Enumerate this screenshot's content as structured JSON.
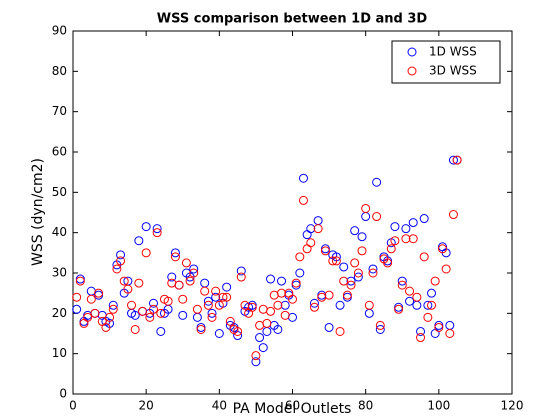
{
  "chart_data": {
    "type": "scatter",
    "title": "WSS comparison between 1D and 3D",
    "xlabel": "PA Model Outlets",
    "ylabel": "WSS (dyn/cm2)",
    "xlim": [
      0,
      120
    ],
    "xticks": [
      0,
      20,
      40,
      60,
      80,
      100,
      120
    ],
    "ylim": [
      0,
      90
    ],
    "yticks": [
      0,
      10,
      20,
      30,
      40,
      50,
      60,
      70,
      80,
      90
    ],
    "legend": "upper right",
    "x": [
      1,
      2,
      3,
      4,
      5,
      6,
      7,
      8,
      9,
      10,
      11,
      12,
      13,
      14,
      15,
      16,
      17,
      18,
      19,
      20,
      21,
      22,
      23,
      24,
      25,
      26,
      27,
      28,
      29,
      30,
      31,
      32,
      33,
      34,
      35,
      36,
      37,
      38,
      39,
      40,
      41,
      42,
      43,
      44,
      45,
      46,
      47,
      48,
      49,
      50,
      51,
      52,
      53,
      54,
      55,
      56,
      57,
      58,
      59,
      60,
      61,
      62,
      63,
      64,
      65,
      66,
      67,
      68,
      69,
      70,
      71,
      72,
      73,
      74,
      75,
      76,
      77,
      78,
      79,
      80,
      81,
      82,
      83,
      84,
      85,
      86,
      87,
      88,
      89,
      90,
      91,
      92,
      93,
      94,
      95,
      96,
      97,
      98,
      99,
      100,
      101,
      102,
      103,
      104,
      105
    ],
    "series": [
      {
        "name": "1D WSS",
        "color": "#0000ff",
        "values": [
          21,
          28.5,
          18,
          19.5,
          25.5,
          20,
          24.5,
          19.5,
          18,
          17.5,
          22,
          32,
          34.5,
          25,
          28,
          20,
          19.5,
          38,
          20.5,
          41.5,
          20,
          22.5,
          41,
          15.5,
          20,
          21,
          29,
          35,
          27,
          19.5,
          30,
          29,
          31,
          19,
          16.5,
          27.5,
          23,
          20,
          24,
          15,
          22.5,
          26.5,
          17,
          16.5,
          14.5,
          30.5,
          20.5,
          21.5,
          22,
          8,
          14,
          11.5,
          15.5,
          28.5,
          17,
          16,
          28,
          22,
          24.5,
          19,
          27,
          30,
          53.5,
          39.5,
          41,
          22.5,
          43,
          24.5,
          36,
          16.5,
          34.5,
          34,
          22,
          31.5,
          24,
          28,
          40.5,
          29,
          39,
          44,
          20,
          31,
          52.5,
          16,
          34,
          33,
          37.5,
          41.5,
          21.5,
          28,
          41,
          23,
          42.5,
          22,
          15.5,
          43.5,
          22,
          25,
          15,
          17,
          36.5,
          35,
          17,
          58,
          58
        ]
      },
      {
        "name": "3D WSS",
        "color": "#ff0000",
        "values": [
          24,
          28,
          17.5,
          19,
          23.5,
          20,
          25,
          18,
          16.5,
          19,
          21,
          31,
          33,
          28,
          26,
          22,
          16,
          27.5,
          20.5,
          35,
          19,
          21,
          40,
          20,
          23.5,
          23,
          27.5,
          34,
          27,
          23.5,
          32.5,
          28,
          30,
          21,
          16,
          25.5,
          22,
          19,
          25.5,
          22,
          24,
          24,
          18,
          16,
          15.5,
          29,
          22,
          20,
          21.5,
          9.5,
          17,
          21,
          17.5,
          20.5,
          24.5,
          22,
          25,
          19.5,
          25,
          23.5,
          27.5,
          34,
          48,
          36,
          37.5,
          21.5,
          41,
          24,
          35.5,
          24.5,
          33,
          33,
          15.5,
          28,
          24.5,
          27,
          32.5,
          30,
          35.5,
          46,
          22,
          30,
          44,
          17,
          33.5,
          32.5,
          36,
          38,
          21,
          27,
          38.5,
          25.5,
          38.5,
          24,
          14,
          34,
          19,
          22,
          28,
          16.5,
          36,
          31,
          15,
          44.5,
          58
        ]
      }
    ]
  }
}
